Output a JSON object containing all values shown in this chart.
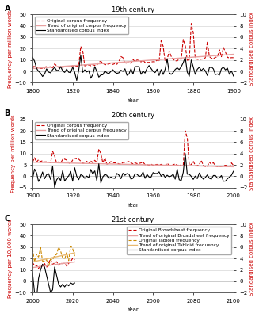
{
  "panels": [
    {
      "label": "A",
      "title": "19th century",
      "xlim": [
        1800,
        1900
      ],
      "xticks": [
        1800,
        1820,
        1840,
        1860,
        1880,
        1900
      ],
      "ylim_left": [
        -10,
        50
      ],
      "yticks_left": [
        -10,
        0,
        10,
        20,
        30,
        40,
        50
      ],
      "ylim_right": [
        -2,
        10
      ],
      "yticks_right": [
        -2,
        0,
        2,
        4,
        6,
        8,
        10
      ],
      "ylabel_left": "Frequency per million words",
      "ylabel_right": "Standardised corpus index",
      "legend_loc": "upper left",
      "legend_entries": [
        {
          "label": "Original corpus frequency",
          "color": "#cc0000",
          "ls": "--",
          "lw": 0.8
        },
        {
          "label": "Trend of original corpus frequency",
          "color": "#e8a0a0",
          "ls": "-",
          "lw": 1.0
        },
        {
          "label": "Standardised corpus index",
          "color": "#000000",
          "ls": "-",
          "lw": 0.8
        }
      ]
    },
    {
      "label": "B",
      "title": "20th century",
      "xlim": [
        1900,
        2000
      ],
      "xticks": [
        1900,
        1920,
        1940,
        1960,
        1980,
        2000
      ],
      "ylim_left": [
        -5,
        25
      ],
      "yticks_left": [
        -5,
        0,
        5,
        10,
        15,
        20,
        25
      ],
      "ylim_right": [
        -2,
        10
      ],
      "yticks_right": [
        -2,
        0,
        2,
        4,
        6,
        8,
        10
      ],
      "ylabel_left": "Frequency per million words",
      "ylabel_right": "Standardised corpus index",
      "legend_loc": "upper left",
      "legend_entries": [
        {
          "label": "Original corpus frequency",
          "color": "#cc0000",
          "ls": "--",
          "lw": 0.8
        },
        {
          "label": "Trend of original corpus frequency",
          "color": "#e8a0a0",
          "ls": "-",
          "lw": 1.0
        },
        {
          "label": "Standardised corpus index",
          "color": "#000000",
          "ls": "-",
          "lw": 0.8
        }
      ]
    },
    {
      "label": "C",
      "title": "21st century",
      "xlim": [
        2000,
        2100
      ],
      "xticks": [
        2000,
        2020,
        2040,
        2060,
        2080,
        2100
      ],
      "ylim_left": [
        -10,
        50
      ],
      "yticks_left": [
        -10,
        0,
        10,
        20,
        30,
        40,
        50
      ],
      "ylim_right": [
        -2,
        10
      ],
      "yticks_right": [
        -2,
        0,
        2,
        4,
        6,
        8,
        10
      ],
      "ylabel_left": "Frequency per 10,000 words",
      "ylabel_right": "Standardised corpus index",
      "legend_loc": "upper right",
      "legend_entries": [
        {
          "label": "Original Broadsheet frequency",
          "color": "#cc0000",
          "ls": "--",
          "lw": 0.8
        },
        {
          "label": "Trend of original Broadsheet frequency",
          "color": "#e8a0a0",
          "ls": "-",
          "lw": 1.0
        },
        {
          "label": "Original Tabloid frequency",
          "color": "#cc8800",
          "ls": "--",
          "lw": 0.8
        },
        {
          "label": "Trend of original Tabloid frequency",
          "color": "#e8b870",
          "ls": "-",
          "lw": 1.0
        },
        {
          "label": "Standardised corpus index",
          "color": "#000000",
          "ls": "-",
          "lw": 0.8
        }
      ]
    }
  ],
  "bg_color": "#ffffff",
  "plot_bg_color": "#ffffff",
  "grid_color": "#cccccc",
  "tick_labelsize": 5,
  "label_fontsize": 5,
  "title_fontsize": 6,
  "legend_fontsize": 4.2,
  "ylabel_color": "#cc0000",
  "tick_color": "#000000"
}
